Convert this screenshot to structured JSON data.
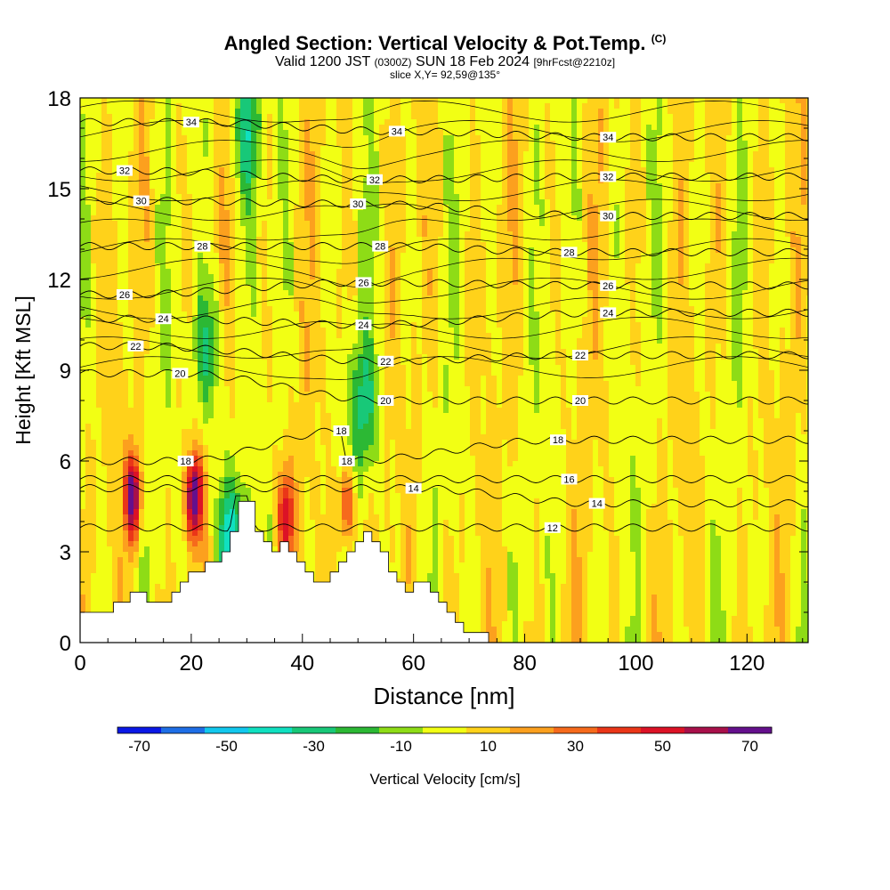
{
  "header": {
    "title": "Angled Section: Vertical Velocity & Pot.Temp.",
    "title_copyright": "(C)",
    "valid_prefix": "Valid 1200 JST",
    "valid_zulu": "(0300Z)",
    "valid_date": "SUN 18 Feb 2024",
    "forecast": "[9hrFcst@2210z]",
    "slice": "slice X,Y= 92,59@135°"
  },
  "chart_data": {
    "type": "heatmap",
    "xlabel": "Distance [nm]",
    "ylabel": "Height [Kft MSL]",
    "xlim": [
      0,
      131
    ],
    "ylim": [
      0,
      18
    ],
    "x_ticks": [
      0,
      20,
      40,
      60,
      80,
      100,
      120
    ],
    "y_ticks": [
      0,
      3,
      6,
      9,
      12,
      15,
      18
    ],
    "colorbar": {
      "label": "Vertical Velocity [cm/s]",
      "bounds": [
        -75,
        -65,
        -55,
        -45,
        -35,
        -25,
        -15,
        -5,
        5,
        15,
        25,
        35,
        45,
        55,
        65,
        75
      ],
      "colors": [
        "#0a18e6",
        "#1e6ee6",
        "#12c8ee",
        "#10e0c0",
        "#18c878",
        "#2cb834",
        "#8edc16",
        "#f2ff14",
        "#ffd21a",
        "#fca01e",
        "#f66a1c",
        "#ea3618",
        "#dc1226",
        "#a8104a",
        "#64108c"
      ],
      "tick_labels": [
        "-70",
        "-50",
        "-30",
        "-10",
        "10",
        "30",
        "50",
        "70"
      ],
      "tick_values": [
        -70,
        -50,
        -30,
        -10,
        10,
        30,
        50,
        70
      ]
    },
    "terrain": [
      [
        0,
        1
      ],
      [
        5,
        1
      ],
      [
        5,
        1.2
      ],
      [
        10,
        1.6
      ],
      [
        15,
        1.3
      ],
      [
        20,
        2.3
      ],
      [
        25,
        2.9
      ],
      [
        27,
        3.8
      ],
      [
        28,
        4.8
      ],
      [
        30,
        4.8
      ],
      [
        32,
        3.5
      ],
      [
        34,
        3.0
      ],
      [
        36,
        3.2
      ],
      [
        38,
        3.0
      ],
      [
        40,
        2.3
      ],
      [
        42,
        2.0
      ],
      [
        44,
        2.0
      ],
      [
        46,
        2.5
      ],
      [
        48,
        3.0
      ],
      [
        50,
        3.5
      ],
      [
        52,
        3.5
      ],
      [
        54,
        3.0
      ],
      [
        56,
        2.2
      ],
      [
        58,
        1.6
      ],
      [
        60,
        2.0
      ],
      [
        62,
        1.8
      ],
      [
        64,
        1.4
      ],
      [
        66,
        1.0
      ],
      [
        68,
        0.6
      ],
      [
        70,
        0.3
      ],
      [
        72,
        0.3
      ],
      [
        74,
        0
      ]
    ],
    "isentropes": [
      {
        "label": "12",
        "x": 85,
        "y": 3.8
      },
      {
        "label": "14",
        "x": 60,
        "y": 5.1
      },
      {
        "label": "14",
        "x": 93,
        "y": 4.6
      },
      {
        "label": "16",
        "x": 88,
        "y": 5.4
      },
      {
        "label": "18",
        "x": 19,
        "y": 6.0
      },
      {
        "label": "18",
        "x": 47,
        "y": 7.0
      },
      {
        "label": "18",
        "x": 48,
        "y": 6.0
      },
      {
        "label": "18",
        "x": 86,
        "y": 6.7
      },
      {
        "label": "20",
        "x": 18,
        "y": 8.9
      },
      {
        "label": "20",
        "x": 55,
        "y": 8.0
      },
      {
        "label": "20",
        "x": 90,
        "y": 8.0
      },
      {
        "label": "22",
        "x": 10,
        "y": 9.8
      },
      {
        "label": "22",
        "x": 55,
        "y": 9.3
      },
      {
        "label": "22",
        "x": 90,
        "y": 9.5
      },
      {
        "label": "24",
        "x": 15,
        "y": 10.7
      },
      {
        "label": "24",
        "x": 51,
        "y": 10.5
      },
      {
        "label": "24",
        "x": 95,
        "y": 10.9
      },
      {
        "label": "26",
        "x": 8,
        "y": 11.5
      },
      {
        "label": "26",
        "x": 51,
        "y": 11.9
      },
      {
        "label": "26",
        "x": 95,
        "y": 11.8
      },
      {
        "label": "28",
        "x": 22,
        "y": 13.1
      },
      {
        "label": "28",
        "x": 54,
        "y": 13.1
      },
      {
        "label": "28",
        "x": 88,
        "y": 12.9
      },
      {
        "label": "30",
        "x": 11,
        "y": 14.6
      },
      {
        "label": "30",
        "x": 50,
        "y": 14.5
      },
      {
        "label": "30",
        "x": 95,
        "y": 14.1
      },
      {
        "label": "32",
        "x": 8,
        "y": 15.6
      },
      {
        "label": "32",
        "x": 53,
        "y": 15.3
      },
      {
        "label": "32",
        "x": 95,
        "y": 15.4
      },
      {
        "label": "34",
        "x": 20,
        "y": 17.2
      },
      {
        "label": "34",
        "x": 57,
        "y": 16.9
      },
      {
        "label": "34",
        "x": 95,
        "y": 16.7
      }
    ],
    "features": [
      {
        "kind": "updraft",
        "x": 9.5,
        "y": 4.8,
        "peak": 72
      },
      {
        "kind": "updraft",
        "x": 20.5,
        "y": 4.8,
        "peak": 75
      },
      {
        "kind": "updraft",
        "x": 37,
        "y": 4.2,
        "peak": 45
      },
      {
        "kind": "updraft",
        "x": 48,
        "y": 4.5,
        "peak": 40
      },
      {
        "kind": "downdraft",
        "x": 23,
        "y": 9.6,
        "peak": -30
      },
      {
        "kind": "downdraft",
        "x": 51,
        "y": 7.8,
        "peak": -30
      },
      {
        "kind": "downdraft",
        "x": 30,
        "y": 17.0,
        "peak": -35
      },
      {
        "kind": "downdraft",
        "x": 27,
        "y": 3.2,
        "peak": -45
      }
    ]
  }
}
